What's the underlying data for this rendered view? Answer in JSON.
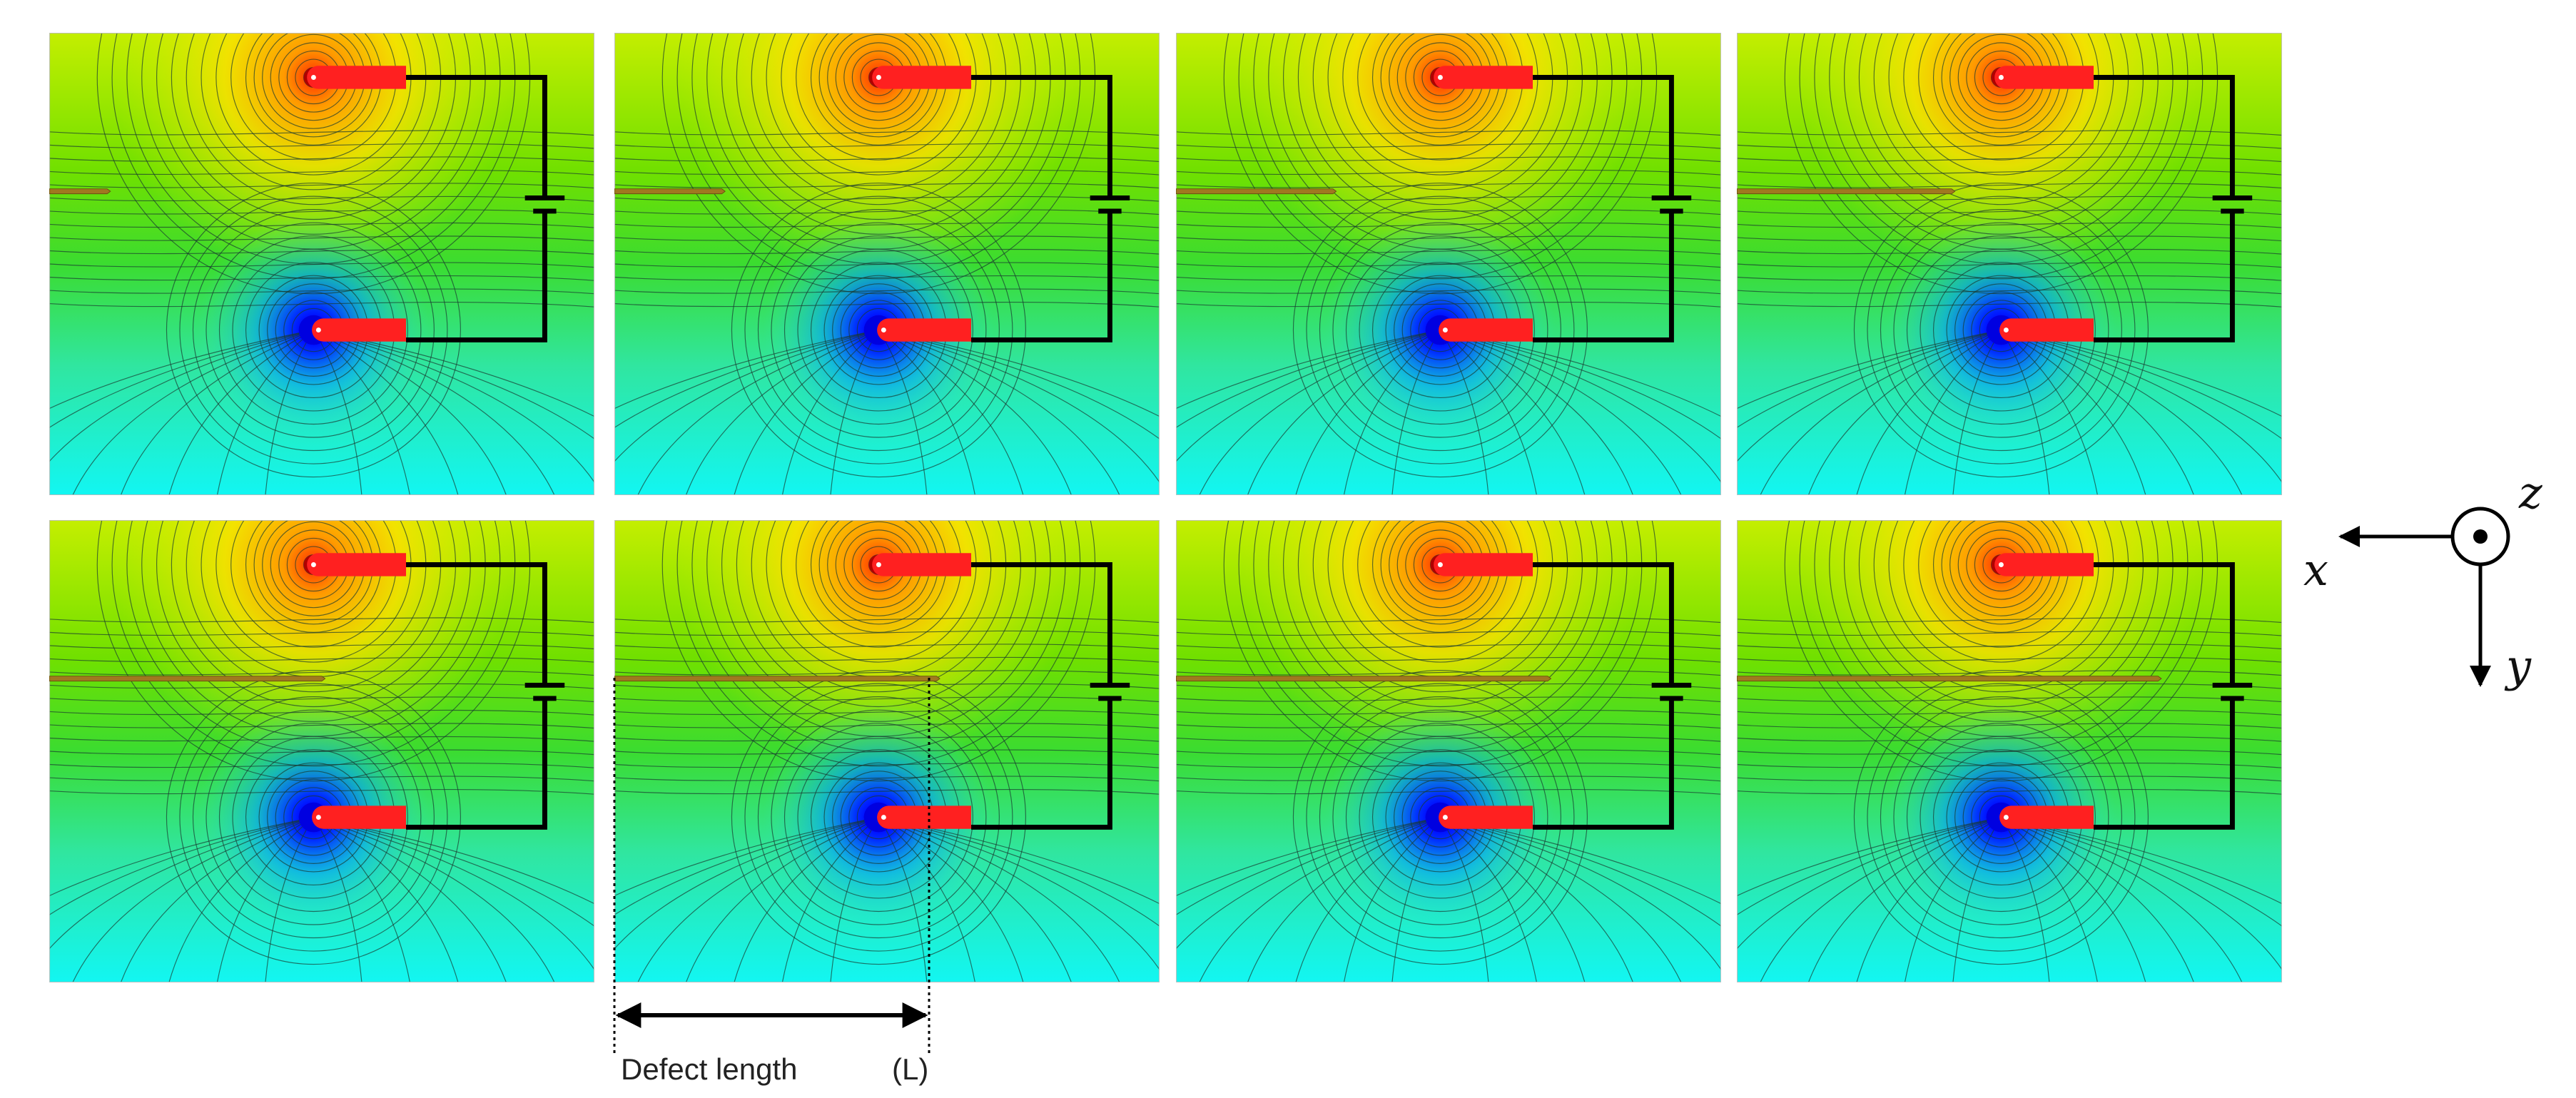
{
  "annotation": {
    "label": "Defect length",
    "symbol": "(L)"
  },
  "axes": {
    "x": "x",
    "y": "y",
    "z": "z"
  }
}
